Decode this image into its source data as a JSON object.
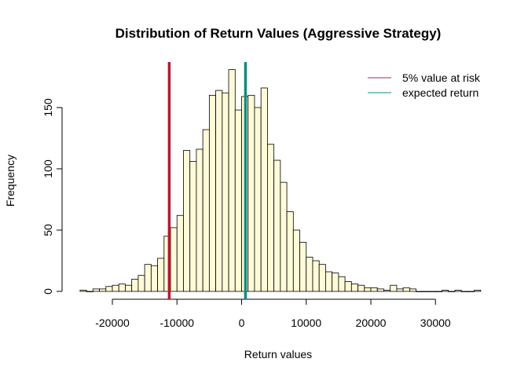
{
  "chart_data": {
    "type": "bar",
    "title": "Distribution of Return Values (Aggressive Strategy)",
    "xlabel": "Return values",
    "ylabel": "Frequency",
    "xlim": [
      -25000,
      37000
    ],
    "ylim": [
      0,
      190
    ],
    "bin_width": 1000,
    "bins_start": -25000,
    "values": [
      1,
      0,
      2,
      2,
      4,
      5,
      6,
      5,
      10,
      13,
      22,
      21,
      27,
      45,
      52,
      62,
      115,
      106,
      116,
      132,
      160,
      164,
      162,
      181,
      148,
      159,
      160,
      150,
      166,
      120,
      107,
      89,
      65,
      50,
      40,
      28,
      25,
      22,
      16,
      15,
      12,
      8,
      6,
      5,
      3,
      3,
      2,
      1,
      5,
      2,
      3,
      2,
      0,
      0,
      0,
      0,
      1,
      0,
      1,
      0,
      0,
      1
    ],
    "xticks": [
      -20000,
      -10000,
      0,
      10000,
      20000,
      30000
    ],
    "xtick_labels": [
      "-20000",
      "-10000",
      "0",
      "10000",
      "20000",
      "30000"
    ],
    "yticks": [
      0,
      50,
      100,
      150
    ],
    "ytick_labels": [
      "0",
      "50",
      "100",
      "150"
    ],
    "bar_fill": "#FFFBD8",
    "vlines": [
      {
        "name": "5% value at risk",
        "x": -11200,
        "color": "#B01B2E"
      },
      {
        "name": "expected return",
        "x": 600,
        "color": "#128A80"
      }
    ],
    "legend": {
      "position": "top-right",
      "entries": [
        "5% value at risk",
        "expected return"
      ],
      "colors": [
        "#C0546C",
        "#3BA79C"
      ]
    }
  }
}
